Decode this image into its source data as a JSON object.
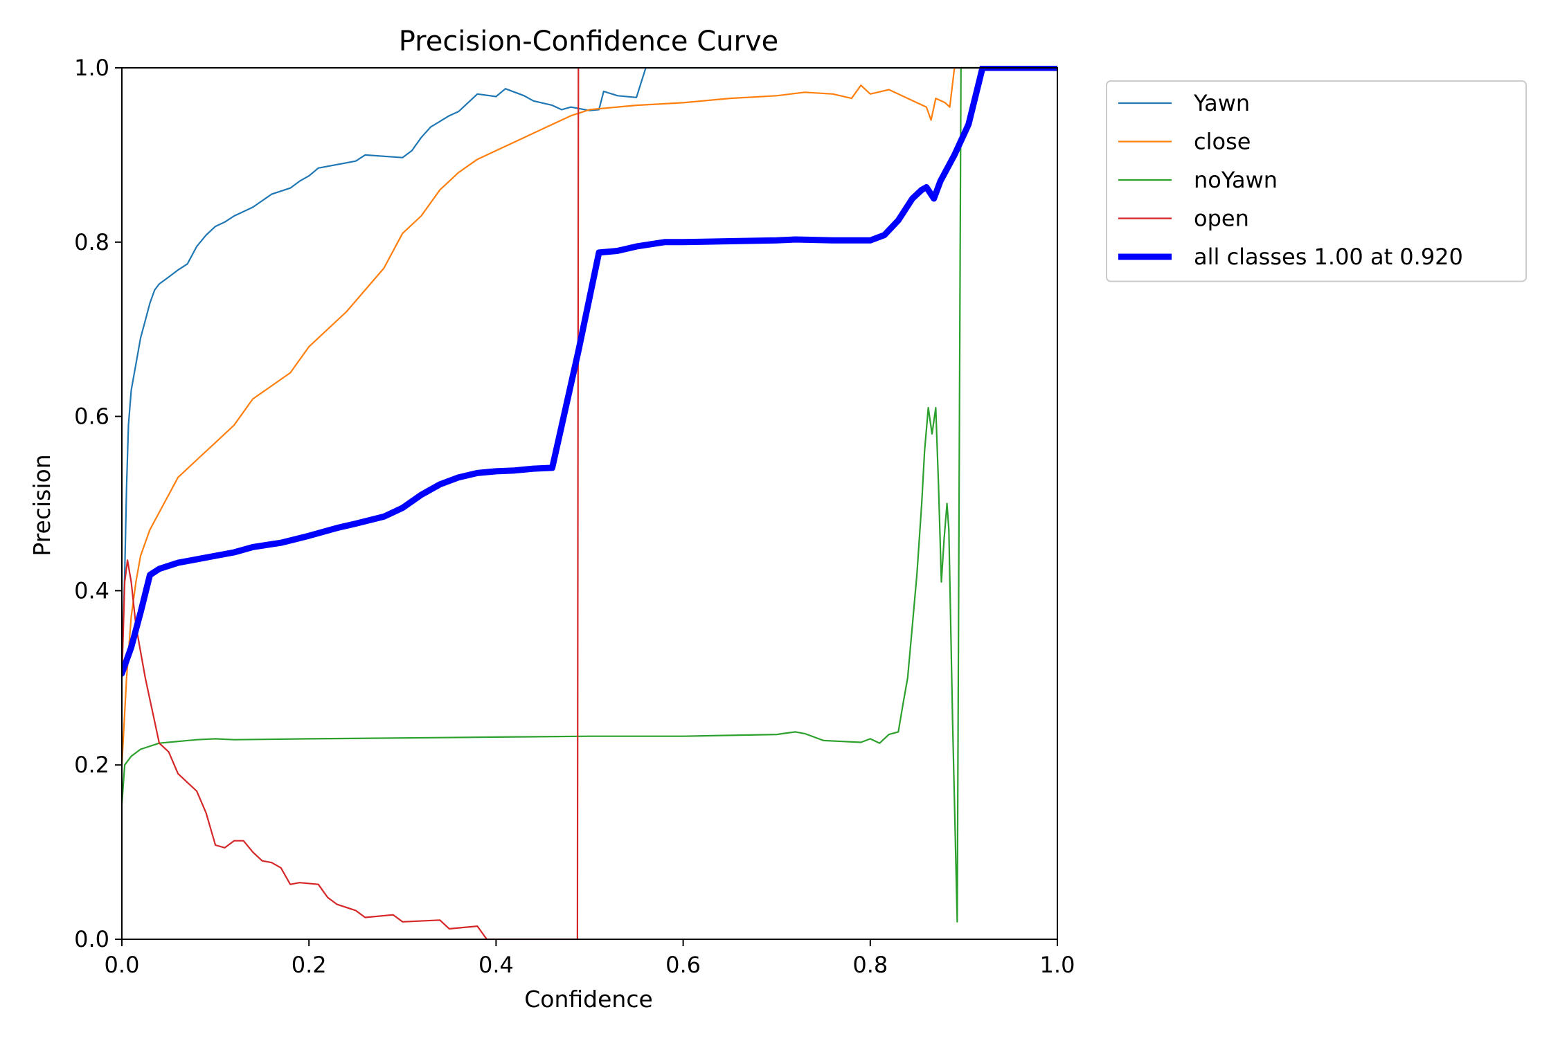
{
  "chart_data": {
    "type": "line",
    "title": "Precision-Confidence Curve",
    "xlabel": "Confidence",
    "ylabel": "Precision",
    "xlim": [
      0,
      1
    ],
    "ylim": [
      0,
      1
    ],
    "xticks": [
      "0.0",
      "0.2",
      "0.4",
      "0.6",
      "0.8",
      "1.0"
    ],
    "yticks": [
      "0.0",
      "0.2",
      "0.4",
      "0.6",
      "0.8",
      "1.0"
    ],
    "grid": false,
    "legend_position": "outside-top-right",
    "series": [
      {
        "name": "Yawn",
        "color": "#1f77b4",
        "width": "thin",
        "points": [
          [
            0.0,
            0.31
          ],
          [
            0.003,
            0.42
          ],
          [
            0.005,
            0.52
          ],
          [
            0.007,
            0.59
          ],
          [
            0.01,
            0.63
          ],
          [
            0.015,
            0.66
          ],
          [
            0.02,
            0.69
          ],
          [
            0.025,
            0.71
          ],
          [
            0.03,
            0.73
          ],
          [
            0.035,
            0.745
          ],
          [
            0.04,
            0.752
          ],
          [
            0.05,
            0.76
          ],
          [
            0.06,
            0.768
          ],
          [
            0.07,
            0.775
          ],
          [
            0.08,
            0.795
          ],
          [
            0.09,
            0.808
          ],
          [
            0.1,
            0.818
          ],
          [
            0.11,
            0.823
          ],
          [
            0.12,
            0.83
          ],
          [
            0.14,
            0.84
          ],
          [
            0.16,
            0.855
          ],
          [
            0.18,
            0.862
          ],
          [
            0.19,
            0.87
          ],
          [
            0.2,
            0.876
          ],
          [
            0.21,
            0.885
          ],
          [
            0.25,
            0.893
          ],
          [
            0.26,
            0.9
          ],
          [
            0.3,
            0.897
          ],
          [
            0.31,
            0.905
          ],
          [
            0.32,
            0.92
          ],
          [
            0.33,
            0.932
          ],
          [
            0.35,
            0.945
          ],
          [
            0.36,
            0.95
          ],
          [
            0.37,
            0.96
          ],
          [
            0.38,
            0.97
          ],
          [
            0.4,
            0.967
          ],
          [
            0.41,
            0.976
          ],
          [
            0.43,
            0.968
          ],
          [
            0.44,
            0.962
          ],
          [
            0.46,
            0.957
          ],
          [
            0.47,
            0.952
          ],
          [
            0.48,
            0.955
          ],
          [
            0.5,
            0.951
          ],
          [
            0.51,
            0.952
          ],
          [
            0.515,
            0.973
          ],
          [
            0.53,
            0.968
          ],
          [
            0.55,
            0.966
          ],
          [
            0.56,
            1.0
          ],
          [
            1.0,
            1.0
          ]
        ]
      },
      {
        "name": "close",
        "color": "#ff7f0e",
        "width": "thin",
        "points": [
          [
            0.0,
            0.2
          ],
          [
            0.005,
            0.3
          ],
          [
            0.01,
            0.37
          ],
          [
            0.015,
            0.41
          ],
          [
            0.02,
            0.44
          ],
          [
            0.03,
            0.47
          ],
          [
            0.04,
            0.49
          ],
          [
            0.05,
            0.51
          ],
          [
            0.06,
            0.53
          ],
          [
            0.08,
            0.55
          ],
          [
            0.1,
            0.57
          ],
          [
            0.12,
            0.59
          ],
          [
            0.14,
            0.62
          ],
          [
            0.16,
            0.635
          ],
          [
            0.18,
            0.65
          ],
          [
            0.2,
            0.68
          ],
          [
            0.22,
            0.7
          ],
          [
            0.24,
            0.72
          ],
          [
            0.26,
            0.745
          ],
          [
            0.28,
            0.77
          ],
          [
            0.3,
            0.81
          ],
          [
            0.32,
            0.83
          ],
          [
            0.34,
            0.86
          ],
          [
            0.36,
            0.88
          ],
          [
            0.38,
            0.895
          ],
          [
            0.4,
            0.905
          ],
          [
            0.43,
            0.92
          ],
          [
            0.46,
            0.935
          ],
          [
            0.48,
            0.945
          ],
          [
            0.5,
            0.952
          ],
          [
            0.55,
            0.957
          ],
          [
            0.6,
            0.96
          ],
          [
            0.65,
            0.965
          ],
          [
            0.7,
            0.968
          ],
          [
            0.73,
            0.972
          ],
          [
            0.76,
            0.97
          ],
          [
            0.78,
            0.965
          ],
          [
            0.79,
            0.98
          ],
          [
            0.8,
            0.97
          ],
          [
            0.82,
            0.975
          ],
          [
            0.84,
            0.965
          ],
          [
            0.86,
            0.955
          ],
          [
            0.865,
            0.94
          ],
          [
            0.87,
            0.965
          ],
          [
            0.88,
            0.96
          ],
          [
            0.885,
            0.955
          ],
          [
            0.89,
            1.0
          ],
          [
            1.0,
            1.0
          ]
        ]
      },
      {
        "name": "noYawn",
        "color": "#2ca02c",
        "width": "thin",
        "points": [
          [
            0.0,
            0.155
          ],
          [
            0.003,
            0.2
          ],
          [
            0.01,
            0.21
          ],
          [
            0.02,
            0.218
          ],
          [
            0.04,
            0.225
          ],
          [
            0.06,
            0.227
          ],
          [
            0.08,
            0.229
          ],
          [
            0.1,
            0.23
          ],
          [
            0.12,
            0.229
          ],
          [
            0.2,
            0.23
          ],
          [
            0.3,
            0.231
          ],
          [
            0.4,
            0.232
          ],
          [
            0.5,
            0.233
          ],
          [
            0.6,
            0.233
          ],
          [
            0.7,
            0.235
          ],
          [
            0.72,
            0.238
          ],
          [
            0.73,
            0.236
          ],
          [
            0.74,
            0.232
          ],
          [
            0.75,
            0.228
          ],
          [
            0.77,
            0.227
          ],
          [
            0.79,
            0.226
          ],
          [
            0.8,
            0.23
          ],
          [
            0.81,
            0.225
          ],
          [
            0.82,
            0.235
          ],
          [
            0.83,
            0.238
          ],
          [
            0.835,
            0.27
          ],
          [
            0.84,
            0.3
          ],
          [
            0.845,
            0.36
          ],
          [
            0.85,
            0.42
          ],
          [
            0.855,
            0.5
          ],
          [
            0.858,
            0.56
          ],
          [
            0.862,
            0.61
          ],
          [
            0.866,
            0.58
          ],
          [
            0.87,
            0.61
          ],
          [
            0.873,
            0.52
          ],
          [
            0.876,
            0.41
          ],
          [
            0.879,
            0.46
          ],
          [
            0.882,
            0.5
          ],
          [
            0.884,
            0.47
          ],
          [
            0.888,
            0.25
          ],
          [
            0.893,
            0.02
          ],
          [
            0.897,
            1.0
          ],
          [
            1.0,
            1.0
          ]
        ]
      },
      {
        "name": "open",
        "color": "#d62728",
        "width": "thin",
        "points": [
          [
            0.0,
            0.3
          ],
          [
            0.003,
            0.41
          ],
          [
            0.006,
            0.435
          ],
          [
            0.01,
            0.41
          ],
          [
            0.015,
            0.36
          ],
          [
            0.02,
            0.33
          ],
          [
            0.025,
            0.3
          ],
          [
            0.03,
            0.275
          ],
          [
            0.035,
            0.25
          ],
          [
            0.04,
            0.225
          ],
          [
            0.05,
            0.215
          ],
          [
            0.06,
            0.19
          ],
          [
            0.07,
            0.18
          ],
          [
            0.08,
            0.17
          ],
          [
            0.09,
            0.145
          ],
          [
            0.1,
            0.108
          ],
          [
            0.11,
            0.105
          ],
          [
            0.12,
            0.113
          ],
          [
            0.13,
            0.113
          ],
          [
            0.14,
            0.1
          ],
          [
            0.15,
            0.09
          ],
          [
            0.16,
            0.088
          ],
          [
            0.17,
            0.082
          ],
          [
            0.18,
            0.063
          ],
          [
            0.19,
            0.065
          ],
          [
            0.21,
            0.063
          ],
          [
            0.22,
            0.048
          ],
          [
            0.23,
            0.04
          ],
          [
            0.25,
            0.033
          ],
          [
            0.26,
            0.025
          ],
          [
            0.29,
            0.028
          ],
          [
            0.3,
            0.02
          ],
          [
            0.34,
            0.022
          ],
          [
            0.35,
            0.012
          ],
          [
            0.38,
            0.015
          ],
          [
            0.39,
            0.0
          ],
          [
            0.487,
            0.0
          ],
          [
            0.488,
            1.0
          ]
        ]
      },
      {
        "name": "all classes 1.00 at 0.920",
        "color": "#0000ff",
        "width": "thick",
        "points": [
          [
            0.0,
            0.305
          ],
          [
            0.01,
            0.335
          ],
          [
            0.02,
            0.375
          ],
          [
            0.03,
            0.418
          ],
          [
            0.04,
            0.425
          ],
          [
            0.06,
            0.432
          ],
          [
            0.08,
            0.436
          ],
          [
            0.1,
            0.44
          ],
          [
            0.12,
            0.444
          ],
          [
            0.14,
            0.45
          ],
          [
            0.17,
            0.455
          ],
          [
            0.2,
            0.463
          ],
          [
            0.23,
            0.472
          ],
          [
            0.25,
            0.477
          ],
          [
            0.28,
            0.485
          ],
          [
            0.3,
            0.495
          ],
          [
            0.32,
            0.51
          ],
          [
            0.34,
            0.522
          ],
          [
            0.36,
            0.53
          ],
          [
            0.38,
            0.535
          ],
          [
            0.4,
            0.537
          ],
          [
            0.42,
            0.538
          ],
          [
            0.44,
            0.54
          ],
          [
            0.46,
            0.541
          ],
          [
            0.488,
            0.675
          ],
          [
            0.51,
            0.788
          ],
          [
            0.53,
            0.79
          ],
          [
            0.55,
            0.795
          ],
          [
            0.58,
            0.8
          ],
          [
            0.6,
            0.8
          ],
          [
            0.65,
            0.801
          ],
          [
            0.7,
            0.802
          ],
          [
            0.72,
            0.803
          ],
          [
            0.76,
            0.802
          ],
          [
            0.8,
            0.802
          ],
          [
            0.815,
            0.808
          ],
          [
            0.83,
            0.825
          ],
          [
            0.845,
            0.85
          ],
          [
            0.855,
            0.86
          ],
          [
            0.86,
            0.863
          ],
          [
            0.868,
            0.85
          ],
          [
            0.875,
            0.87
          ],
          [
            0.89,
            0.9
          ],
          [
            0.905,
            0.935
          ],
          [
            0.92,
            1.0
          ],
          [
            1.0,
            1.0
          ]
        ]
      }
    ]
  }
}
